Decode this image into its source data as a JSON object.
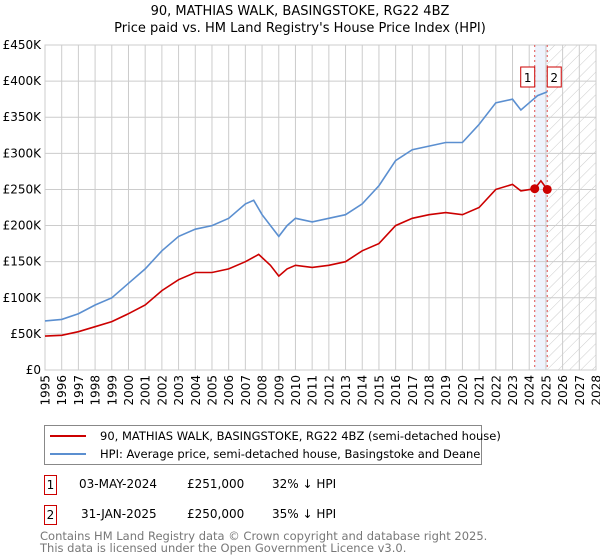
{
  "chart_data": {
    "type": "line",
    "title": "90, MATHIAS WALK, BASINGSTOKE, RG22 4BZ",
    "subtitle": "Price paid vs. HM Land Registry's House Price Index (HPI)",
    "xlim": [
      1995,
      2028
    ],
    "ylim": [
      0,
      450000
    ],
    "x_ticks": [
      "1995",
      "1996",
      "1997",
      "1998",
      "1999",
      "2000",
      "2001",
      "2002",
      "2003",
      "2004",
      "2005",
      "2006",
      "2007",
      "2008",
      "2009",
      "2010",
      "2011",
      "2012",
      "2013",
      "2014",
      "2015",
      "2016",
      "2017",
      "2018",
      "2019",
      "2020",
      "2021",
      "2022",
      "2023",
      "2024",
      "2025",
      "2026",
      "2027",
      "2028"
    ],
    "y_ticks": [
      {
        "v": 0,
        "label": "£0"
      },
      {
        "v": 50000,
        "label": "£50K"
      },
      {
        "v": 100000,
        "label": "£100K"
      },
      {
        "v": 150000,
        "label": "£150K"
      },
      {
        "v": 200000,
        "label": "£200K"
      },
      {
        "v": 250000,
        "label": "£250K"
      },
      {
        "v": 300000,
        "label": "£300K"
      },
      {
        "v": 350000,
        "label": "£350K"
      },
      {
        "v": 400000,
        "label": "£400K"
      },
      {
        "v": 450000,
        "label": "£450K"
      }
    ],
    "grid": true,
    "series": [
      {
        "name": "90, MATHIAS WALK, BASINGSTOKE, RG22 4BZ (semi-detached house)",
        "color": "#cc0000",
        "x": [
          1995,
          1996,
          1997,
          1998,
          1999,
          2000,
          2001,
          2002,
          2003,
          2004,
          2005,
          2006,
          2007,
          2007.8,
          2008.5,
          2009,
          2009.5,
          2010,
          2011,
          2012,
          2013,
          2014,
          2015,
          2016,
          2017,
          2018,
          2019,
          2020,
          2021,
          2022,
          2023,
          2023.5,
          2024.33,
          2024.7,
          2025.08
        ],
        "y": [
          47000,
          48000,
          53000,
          60000,
          67000,
          78000,
          90000,
          110000,
          125000,
          135000,
          135000,
          140000,
          150000,
          160000,
          145000,
          130000,
          140000,
          145000,
          142000,
          145000,
          150000,
          165000,
          175000,
          200000,
          210000,
          215000,
          218000,
          215000,
          225000,
          250000,
          257000,
          248000,
          251000,
          262000,
          250000
        ]
      },
      {
        "name": "HPI: Average price, semi-detached house, Basingstoke and Deane",
        "color": "#5b8fd0",
        "x": [
          1995,
          1996,
          1997,
          1998,
          1999,
          2000,
          2001,
          2002,
          2003,
          2004,
          2005,
          2006,
          2007,
          2007.5,
          2008,
          2009,
          2009.5,
          2010,
          2011,
          2012,
          2013,
          2014,
          2015,
          2016,
          2017,
          2018,
          2019,
          2020,
          2021,
          2022,
          2023,
          2023.5,
          2024,
          2024.5,
          2025.08
        ],
        "y": [
          68000,
          70000,
          78000,
          90000,
          100000,
          120000,
          140000,
          165000,
          185000,
          195000,
          200000,
          210000,
          230000,
          235000,
          215000,
          185000,
          200000,
          210000,
          205000,
          210000,
          215000,
          230000,
          255000,
          290000,
          305000,
          310000,
          315000,
          315000,
          340000,
          370000,
          375000,
          360000,
          370000,
          380000,
          385000
        ]
      }
    ],
    "sales": [
      {
        "id": "1",
        "x": 2024.33,
        "y": 251000,
        "date": "03-MAY-2024",
        "price": "£251,000",
        "delta": "32% ↓ HPI"
      },
      {
        "id": "2",
        "x": 2025.08,
        "y": 250000,
        "date": "31-JAN-2025",
        "price": "£250,000",
        "delta": "35% ↓ HPI"
      }
    ]
  },
  "footer": {
    "line1": "Contains HM Land Registry data © Crown copyright and database right 2025.",
    "line2": "This data is licensed under the Open Government Licence v3.0."
  }
}
